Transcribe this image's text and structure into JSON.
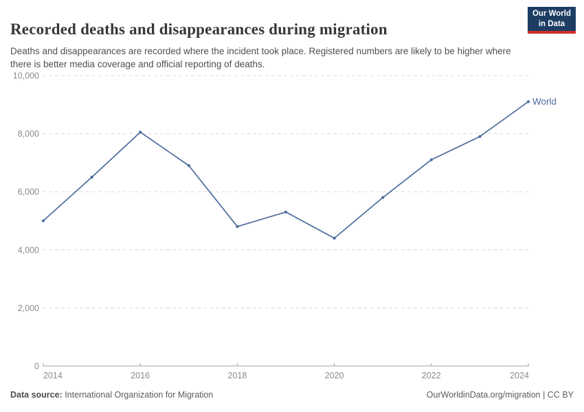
{
  "header": {
    "title": "Recorded deaths and disappearances during migration",
    "subtitle": "Deaths and disappearances are recorded where the incident took place. Registered numbers are likely to be higher where there is better media coverage and official reporting of deaths.",
    "logo": {
      "line1": "Our World",
      "line2": "in Data",
      "bg_color": "#1d3d63",
      "accent_color": "#cf2e27"
    }
  },
  "chart_data": {
    "type": "line",
    "title": "Recorded deaths and disappearances during migration",
    "x": [
      2014,
      2015,
      2016,
      2017,
      2018,
      2019,
      2020,
      2021,
      2022,
      2023,
      2024
    ],
    "series": [
      {
        "name": "World",
        "color": "#4C6A9C",
        "values": [
          5000,
          6500,
          8050,
          6900,
          4800,
          5300,
          4400,
          5800,
          7100,
          7900,
          9100
        ]
      }
    ],
    "xlabel": "",
    "ylabel": "",
    "ylim": [
      0,
      10000
    ],
    "yticks": [
      0,
      2000,
      4000,
      6000,
      8000,
      10000
    ],
    "ytick_labels": [
      "0",
      "2,000",
      "4,000",
      "6,000",
      "8,000",
      "10,000"
    ],
    "xticks": [
      2014,
      2016,
      2018,
      2020,
      2022,
      2024
    ],
    "grid": "horizontal-dashed",
    "grid_color": "#dcdcdc",
    "axis_color": "#a3a3a3",
    "tick_label_color": "#8a8a8a",
    "legend_position": "end-of-line-label",
    "end_label": "World"
  },
  "footer": {
    "datasource_label": "Data source:",
    "datasource_value": " International Organization for Migration",
    "attribution": "OurWorldinData.org/migration | CC BY"
  }
}
